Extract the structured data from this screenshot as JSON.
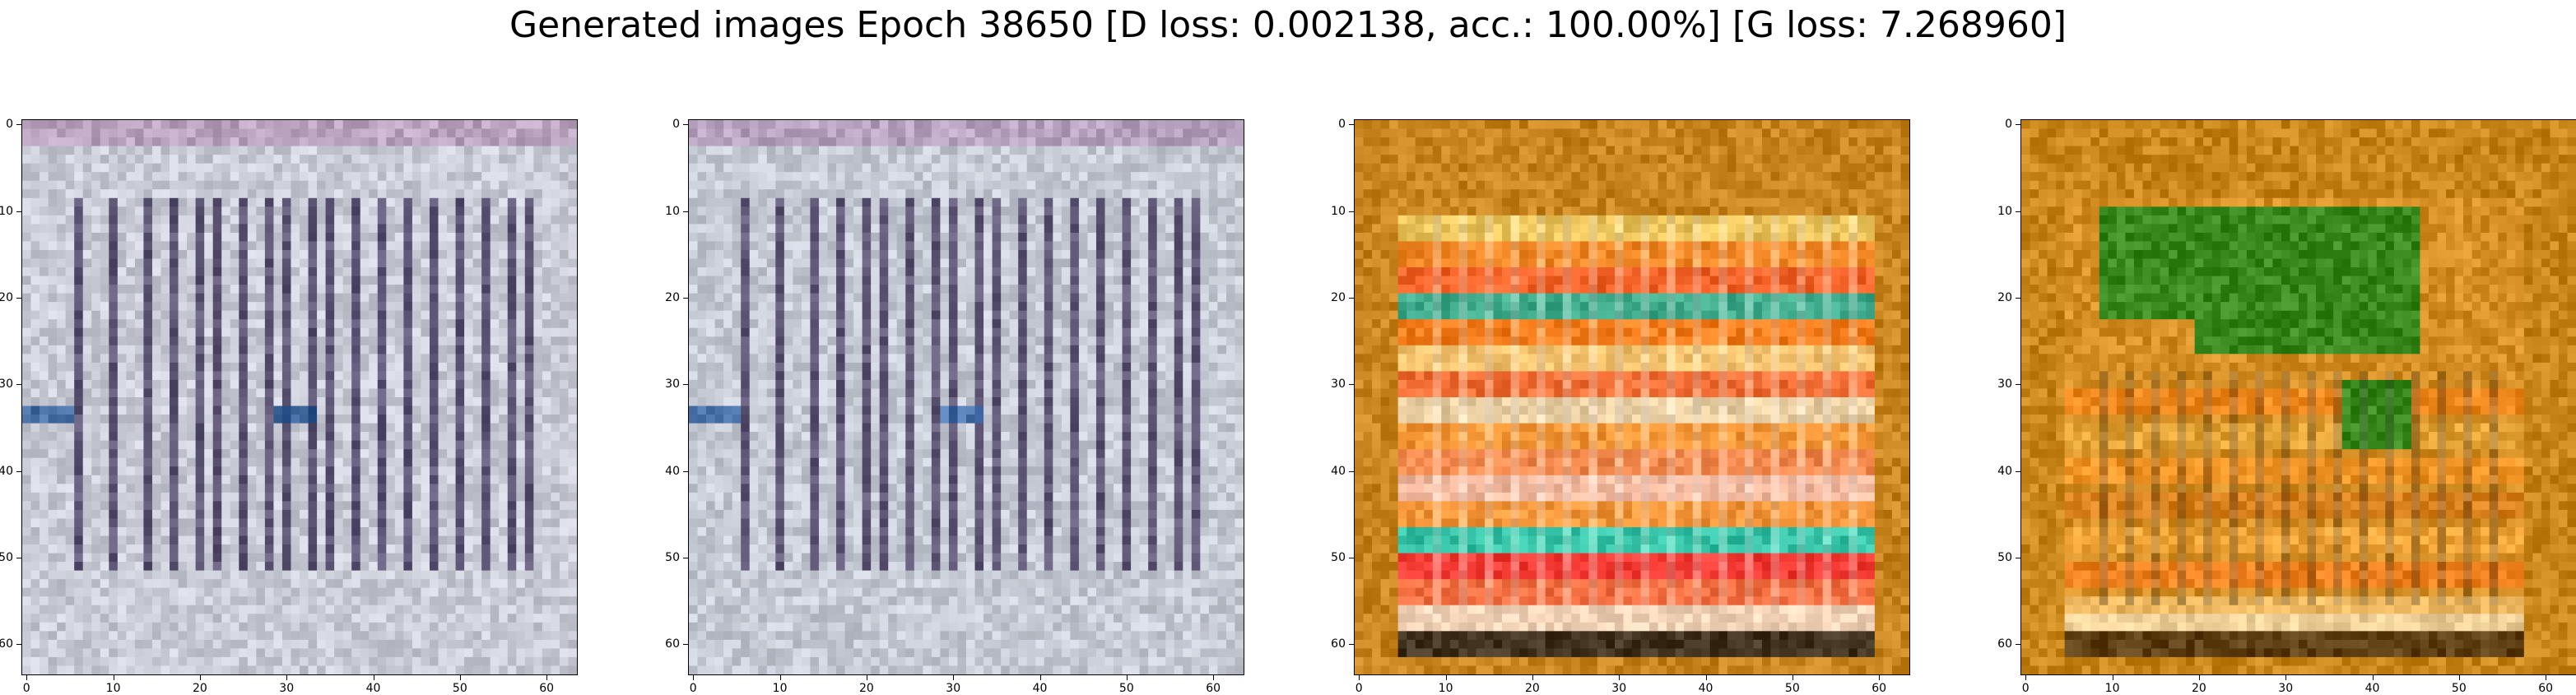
{
  "figure": {
    "title": "Generated images Epoch 38650 [D loss: 0.002138, acc.: 100.00%] [G loss: 7.268960]"
  },
  "axes": {
    "xticks": [
      "0",
      "10",
      "20",
      "30",
      "40",
      "50",
      "60"
    ],
    "yticks": [
      "0",
      "10",
      "20",
      "30",
      "40",
      "50",
      "60"
    ],
    "xlim": [
      -0.5,
      63.5
    ],
    "ylim": [
      63.5,
      -0.5
    ],
    "pixel_grid": 64
  },
  "panels": [
    {
      "style": "gray-stripes",
      "base_color": "#c9ccd6",
      "stripe_color": "#3a2f55",
      "accent_color": "#2a5a9a",
      "stripe_columns": [
        6,
        10,
        14,
        17,
        20,
        22,
        25,
        28,
        30,
        33,
        35,
        38,
        41,
        44,
        47,
        50,
        53,
        56,
        58
      ]
    },
    {
      "style": "gray-stripes",
      "base_color": "#c6cad5",
      "stripe_color": "#3b3156",
      "accent_color": "#2f62a3",
      "stripe_columns": [
        6,
        10,
        14,
        17,
        20,
        22,
        25,
        28,
        30,
        33,
        35,
        38,
        41,
        44,
        47,
        50,
        53,
        56,
        58
      ]
    },
    {
      "style": "warm-bands",
      "base_color": "#c8851f",
      "bands": [
        {
          "row": 12,
          "color": "#f4d46a"
        },
        {
          "row": 15,
          "color": "#ff8a2a"
        },
        {
          "row": 18,
          "color": "#ff5a2a"
        },
        {
          "row": 21,
          "color": "#1fb6a8"
        },
        {
          "row": 24,
          "color": "#ff7a1a"
        },
        {
          "row": 27,
          "color": "#ffd080"
        },
        {
          "row": 30,
          "color": "#ff6a3a"
        },
        {
          "row": 33,
          "color": "#f0e0c0"
        },
        {
          "row": 36,
          "color": "#ff9a3a"
        },
        {
          "row": 39,
          "color": "#ff8a5a"
        },
        {
          "row": 42,
          "color": "#ffc8c0"
        },
        {
          "row": 45,
          "color": "#ff9a40"
        },
        {
          "row": 48,
          "color": "#10d0c8"
        },
        {
          "row": 51,
          "color": "#ff2a3a"
        },
        {
          "row": 54,
          "color": "#ff6a4a"
        },
        {
          "row": 57,
          "color": "#ffe8e0"
        },
        {
          "row": 60,
          "color": "#202020"
        }
      ]
    },
    {
      "style": "orange-green",
      "base_color": "#c8861a",
      "green_color": "#1e8a1e",
      "bands": [
        {
          "row": 32,
          "color": "#ff8a20"
        },
        {
          "row": 36,
          "color": "#f0b040"
        },
        {
          "row": 40,
          "color": "#ff9a2a"
        },
        {
          "row": 44,
          "color": "#e08020"
        },
        {
          "row": 48,
          "color": "#ffb040"
        },
        {
          "row": 52,
          "color": "#ff8020"
        },
        {
          "row": 56,
          "color": "#ffd080"
        },
        {
          "row": 58,
          "color": "#fff0d0"
        },
        {
          "row": 60,
          "color": "#302010"
        }
      ]
    }
  ]
}
